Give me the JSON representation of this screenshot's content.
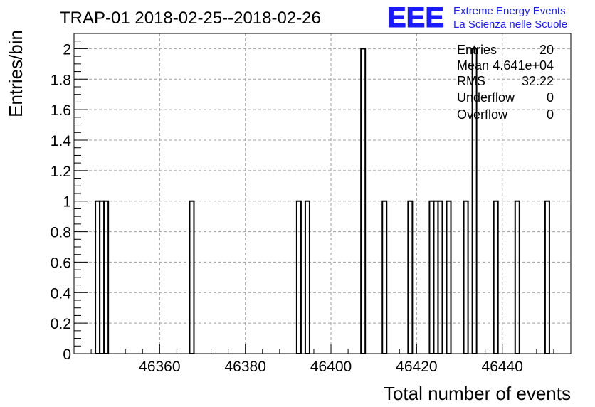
{
  "title": "TRAP-01 2018-02-25--2018-02-26",
  "logo": {
    "mark": "EEE",
    "line1": "Extreme Energy Events",
    "line2": "La Scienza nelle Scuole",
    "color": "#1a1aff"
  },
  "stats": [
    {
      "label": "Entries",
      "value": "20"
    },
    {
      "label": "Mean",
      "value": "4.641e+04"
    },
    {
      "label": "RMS",
      "value": "32.22"
    },
    {
      "label": "Underflow",
      "value": "0"
    },
    {
      "label": "Overflow",
      "value": "0"
    }
  ],
  "chart_data": {
    "type": "bar",
    "style": "step-histogram",
    "xlabel": "Total number of events",
    "ylabel": "Entries/bin",
    "xlim": [
      46340,
      46456
    ],
    "ylim": [
      0,
      2.1
    ],
    "bin_width": 1,
    "grid": true,
    "x_ticks": [
      "46360",
      "46380",
      "46400",
      "46420",
      "46440"
    ],
    "y_ticks": [
      "0",
      "0.2",
      "0.4",
      "0.6",
      "0.8",
      "1",
      "1.2",
      "1.4",
      "1.6",
      "1.8",
      "2"
    ],
    "bins": [
      {
        "x": 46345,
        "count": 1
      },
      {
        "x": 46346,
        "count": 1
      },
      {
        "x": 46347,
        "count": 1
      },
      {
        "x": 46367,
        "count": 1
      },
      {
        "x": 46392,
        "count": 1
      },
      {
        "x": 46394,
        "count": 1
      },
      {
        "x": 46407,
        "count": 2
      },
      {
        "x": 46412,
        "count": 1
      },
      {
        "x": 46418,
        "count": 1
      },
      {
        "x": 46423,
        "count": 1
      },
      {
        "x": 46424,
        "count": 1
      },
      {
        "x": 46425,
        "count": 1
      },
      {
        "x": 46427,
        "count": 1
      },
      {
        "x": 46431,
        "count": 1
      },
      {
        "x": 46433,
        "count": 2
      },
      {
        "x": 46438,
        "count": 1
      },
      {
        "x": 46443,
        "count": 1
      },
      {
        "x": 46450,
        "count": 1
      }
    ]
  }
}
